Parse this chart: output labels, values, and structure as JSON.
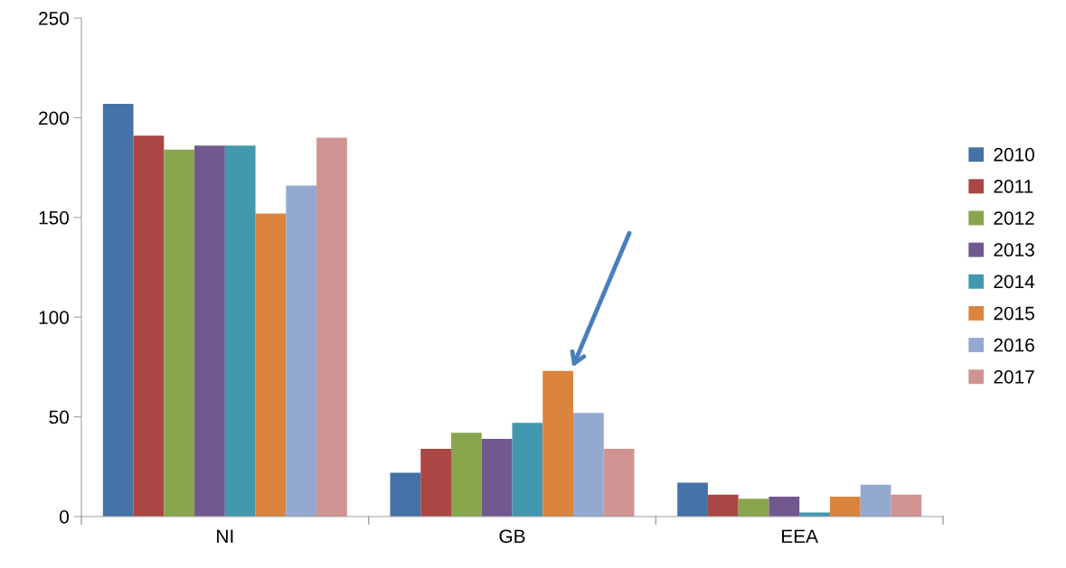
{
  "chart_data": {
    "type": "bar",
    "categories": [
      "NI",
      "GB",
      "EEA"
    ],
    "series": [
      {
        "name": "2010",
        "color": "#4572a7",
        "values": [
          207,
          22,
          17
        ]
      },
      {
        "name": "2011",
        "color": "#aa4643",
        "values": [
          191,
          34,
          11
        ]
      },
      {
        "name": "2012",
        "color": "#89a54e",
        "values": [
          184,
          42,
          9
        ]
      },
      {
        "name": "2013",
        "color": "#71588f",
        "values": [
          186,
          39,
          10
        ]
      },
      {
        "name": "2014",
        "color": "#4198af",
        "values": [
          186,
          47,
          2
        ]
      },
      {
        "name": "2015",
        "color": "#db843d",
        "values": [
          152,
          73,
          10
        ]
      },
      {
        "name": "2016",
        "color": "#93a9cf",
        "values": [
          166,
          52,
          16
        ]
      },
      {
        "name": "2017",
        "color": "#d19392",
        "values": [
          190,
          34,
          11
        ]
      }
    ],
    "ylim": [
      0,
      250
    ],
    "yticks": [
      0,
      50,
      100,
      150,
      200,
      250
    ],
    "grid": false,
    "legend": "right"
  }
}
